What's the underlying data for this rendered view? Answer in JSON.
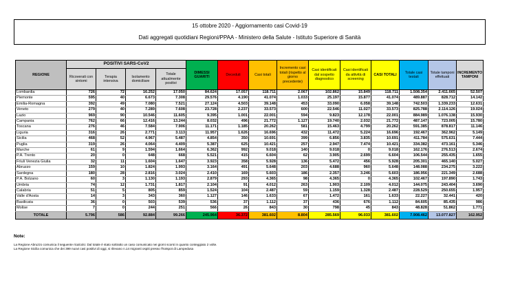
{
  "title": "15 ottobre 2020 - Aggiornamento casi Covid-19",
  "subtitle": "Dati aggregati quotidiani Regioni/PPAA - Ministero della Salute - Istituto Superiore di Sanità",
  "colors": {
    "grey": "#bfbfbf",
    "light_grey": "#d9d9d9",
    "green": "#00b050",
    "red": "#ff0000",
    "orange": "#ffc000",
    "yellow": "#ffff00",
    "blue": "#00b0f0",
    "lavender": "#b4c6e7"
  },
  "header": {
    "regione": "REGIONE",
    "positivi": "POSITIVI SARS-CoV2",
    "columns": [
      "Ricoverati con sintomi",
      "Terapia intensiva",
      "Isolamento domiciliare",
      "Totale attualmente positivi",
      "DIMESSI GUARITI",
      "Deceduti",
      "Casi totali",
      "Incremento casi totali (rispetto al giorno precedente)",
      "Casi identificati dal sospetto diagnostico",
      "Casi identificati da attività di screening",
      "CASI TOTALI",
      "Totale casi testati",
      "Totale tamponi effettuati",
      "INCREMENTO TAMPONI"
    ]
  },
  "rows": [
    [
      "Lombardia",
      "726",
      "72",
      "16.252",
      "17.050",
      "84.624",
      "17.057",
      "118.711",
      "2.067",
      "102.862",
      "15.849",
      "118.711",
      "1.508.354",
      "2.411.665",
      "52.507"
    ],
    [
      "Piemonte",
      "595",
      "40",
      "6.673",
      "7.308",
      "29.576",
      "4.190",
      "41.074",
      "1.033",
      "25.197",
      "15.877",
      "41.074",
      "489.887",
      "828.712",
      "14.142"
    ],
    [
      "Emilia-Romagna",
      "392",
      "49",
      "7.080",
      "7.521",
      "27.124",
      "4.503",
      "39.148",
      "453",
      "33.090",
      "6.058",
      "39.148",
      "742.503",
      "1.339.233",
      "12.631"
    ],
    [
      "Veneto",
      "279",
      "40",
      "7.289",
      "7.608",
      "23.728",
      "2.237",
      "33.573",
      "600",
      "22.546",
      "11.027",
      "33.573",
      "825.788",
      "2.114.126",
      "19.024"
    ],
    [
      "Lazio",
      "969",
      "90",
      "10.546",
      "11.605",
      "9.395",
      "1.001",
      "22.001",
      "594",
      "9.823",
      "12.178",
      "22.001",
      "884.989",
      "1.076.138",
      "15.930"
    ],
    [
      "Campania",
      "762",
      "66",
      "12.416",
      "13.244",
      "8.032",
      "496",
      "21.772",
      "1.127",
      "19.740",
      "2.032",
      "21.772",
      "487.147",
      "723.005",
      "15.780"
    ],
    [
      "Toscana",
      "276",
      "46",
      "7.584",
      "7.906",
      "11.171",
      "1.185",
      "20.262",
      "581",
      "15.463",
      "4.799",
      "20.262",
      "591.385",
      "878.817",
      "11.146"
    ],
    [
      "Liguria",
      "316",
      "26",
      "2.771",
      "3.113",
      "11.957",
      "1.626",
      "16.696",
      "432",
      "11.472",
      "5.224",
      "16.696",
      "192.467",
      "362.962",
      "5.149"
    ],
    [
      "Sicilia",
      "468",
      "52",
      "4.967",
      "5.487",
      "4.854",
      "350",
      "10.691",
      "399",
      "6.856",
      "3.835",
      "10.691",
      "411.784",
      "575.631",
      "7.444"
    ],
    [
      "Puglia",
      "319",
      "26",
      "4.064",
      "4.409",
      "5.387",
      "625",
      "10.421",
      "257",
      "2.947",
      "7.474",
      "10.421",
      "334.382",
      "473.161",
      "5.346"
    ],
    [
      "Marche",
      "61",
      "9",
      "1.594",
      "1.664",
      "6.362",
      "992",
      "9.018",
      "140",
      "9.018",
      "0",
      "9.018",
      "162.176",
      "276.513",
      "2.674"
    ],
    [
      "P.A. Trento",
      "20",
      "0",
      "648",
      "668",
      "5.521",
      "415",
      "6.604",
      "62",
      "3.905",
      "2.699",
      "6.604",
      "106.544",
      "255.435",
      "1.655"
    ],
    [
      "Friuli Venezia Giulia",
      "32",
      "11",
      "1.604",
      "1.647",
      "3.923",
      "358",
      "5.928",
      "136",
      "5.472",
      "456",
      "5.928",
      "205.301",
      "465.140",
      "5.027"
    ],
    [
      "Abruzzo",
      "159",
      "10",
      "1.824",
      "1.993",
      "3.164",
      "491",
      "5.648",
      "203",
      "4.688",
      "960",
      "5.648",
      "148.088",
      "234.275",
      "3.222"
    ],
    [
      "Sardegna",
      "180",
      "28",
      "2.816",
      "3.024",
      "2.410",
      "169",
      "5.603",
      "186",
      "2.357",
      "3.246",
      "5.603",
      "186.956",
      "221.349",
      "2.688"
    ],
    [
      "P.A. Bolzano",
      "60",
      "3",
      "1.130",
      "1.193",
      "2.879",
      "293",
      "4.365",
      "98",
      "4.365",
      "0",
      "4.365",
      "102.467",
      "197.890",
      "1.743"
    ],
    [
      "Umbria",
      "74",
      "12",
      "1.731",
      "1.817",
      "2.104",
      "91",
      "4.012",
      "263",
      "1.903",
      "2.109",
      "4.012",
      "144.075",
      "243.404",
      "3.690"
    ],
    [
      "Calabria",
      "51",
      "5",
      "805",
      "859",
      "1.524",
      "104",
      "2.487",
      "59",
      "1.159",
      "1.328",
      "2.487",
      "228.529",
      "250.655",
      "1.957"
    ],
    [
      "Valle d'Aosta",
      "14",
      "3",
      "343",
      "360",
      "1.127",
      "146",
      "1.633",
      "67",
      "1.472",
      "161",
      "1.633",
      "22.227",
      "32.441",
      "420"
    ],
    [
      "Basilicata",
      "36",
      "0",
      "503",
      "539",
      "536",
      "37",
      "1.112",
      "37",
      "436",
      "676",
      "1.112",
      "84.605",
      "85.435",
      "986"
    ],
    [
      "Molise",
      "7",
      "0",
      "244",
      "251",
      "566",
      "26",
      "843",
      "30",
      "798",
      "45",
      "843",
      "48.828",
      "51.862",
      "1.771"
    ]
  ],
  "totals": [
    "TOTALE",
    "5.796",
    "586",
    "92.884",
    "99.266",
    "245.964",
    "36.372",
    "381.602",
    "8.804",
    "285.569",
    "96.033",
    "381.602",
    "7.908.462",
    "13.077.827",
    "162.952"
  ],
  "notes": {
    "title": "Note:",
    "lines": [
      "La Regione Abruzzo comunica il seguente ricalcolo: Dal totale è stato sottratto un caso comunicato nei giorni scorsi in quanto conteggiato 2 volte.",
      "La Regione Sicilia comunica che dei 399 nuovi casi positivi di oggi, si rilevano n.14 migranti ospiti presso l'hotspot di Lampedusa"
    ]
  }
}
